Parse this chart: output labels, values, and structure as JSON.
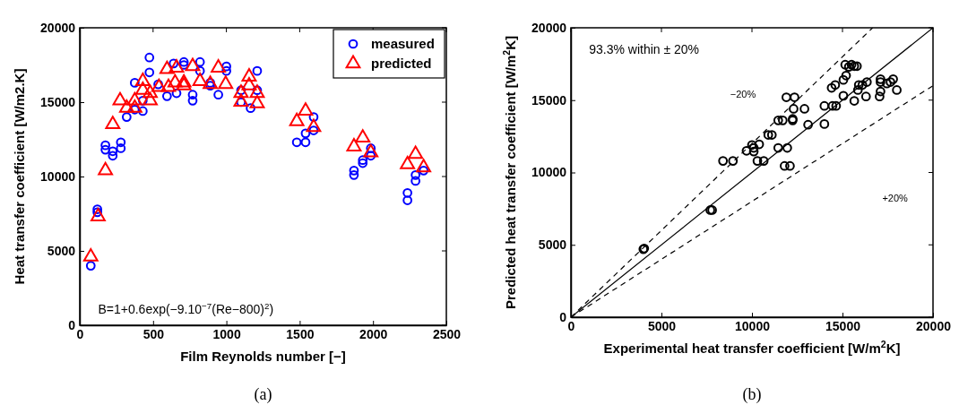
{
  "chart_data": [
    {
      "type": "scatter",
      "xlabel": "Film Reynolds number [−]",
      "ylabel": "Heat transfer coefficient [W/m2.K]",
      "xlim": [
        0,
        2500
      ],
      "ylim": [
        0,
        20000
      ],
      "xticks": [
        0,
        500,
        1000,
        1500,
        2000,
        2500
      ],
      "yticks": [
        0,
        5000,
        10000,
        15000,
        20000
      ],
      "legend": "top right",
      "grid": false,
      "annotations": [
        "B=1+0.6exp(−9.10$^{−7}$(Re−800)$^{2}$)",
        "(a)"
      ],
      "series": [
        {
          "name": "measured",
          "color": "#0000ff",
          "marker": "circle",
          "x": [
            75,
            120,
            120,
            175,
            175,
            225,
            225,
            280,
            280,
            320,
            375,
            375,
            430,
            430,
            475,
            475,
            535,
            595,
            640,
            660,
            710,
            710,
            770,
            770,
            820,
            820,
            890,
            890,
            945,
            1000,
            1000,
            1100,
            1100,
            1165,
            1210,
            1210,
            1480,
            1540,
            1540,
            1595,
            1595,
            1870,
            1870,
            1930,
            1930,
            1985,
            1985,
            2235,
            2235,
            2290,
            2290,
            2345
          ],
          "values": [
            4000,
            7800,
            7600,
            12100,
            11800,
            11700,
            11400,
            12300,
            11900,
            14000,
            14500,
            16300,
            14400,
            15100,
            18000,
            17000,
            16200,
            15400,
            17600,
            15600,
            17700,
            17500,
            15500,
            15100,
            17700,
            17100,
            16300,
            16100,
            15500,
            17400,
            17100,
            15800,
            15000,
            14600,
            17100,
            15800,
            12300,
            12300,
            12900,
            14000,
            13100,
            10400,
            10100,
            11100,
            10900,
            11900,
            11400,
            8900,
            8400,
            10100,
            9700,
            10400
          ]
        },
        {
          "name": "predicted",
          "color": "#ff0000",
          "marker": "triangle",
          "x": [
            75,
            125,
            175,
            225,
            275,
            320,
            375,
            375,
            430,
            430,
            480,
            480,
            540,
            595,
            605,
            650,
            660,
            710,
            710,
            770,
            820,
            890,
            945,
            995,
            1100,
            1100,
            1155,
            1155,
            1210,
            1210,
            1480,
            1540,
            1595,
            1870,
            1930,
            1985,
            2235,
            2290,
            2345
          ],
          "values": [
            4700,
            7400,
            10500,
            13600,
            15200,
            14700,
            14700,
            15200,
            16500,
            15900,
            15700,
            15200,
            16100,
            17300,
            16100,
            16400,
            17400,
            16400,
            16200,
            17500,
            16500,
            16300,
            17400,
            16300,
            15700,
            15100,
            16800,
            16200,
            15700,
            15000,
            13800,
            14500,
            13400,
            12100,
            12700,
            11700,
            10900,
            11600,
            10700
          ]
        }
      ]
    },
    {
      "type": "scatter",
      "xlabel": "Experimental heat transfer coefficient [W/m$^{2}$K]",
      "ylabel": "Predicted heat transfer coefficient [W/m$^{2}$K]",
      "xlim": [
        0,
        20000
      ],
      "ylim": [
        0,
        20000
      ],
      "xticks": [
        0,
        5000,
        10000,
        15000,
        20000
      ],
      "yticks": [
        0,
        5000,
        10000,
        15000,
        20000
      ],
      "grid": false,
      "legend": false,
      "annotations": [
        "93.3% within ± 20%",
        "−20%",
        "+20%",
        "(b)"
      ],
      "series": [
        {
          "color": "#000000",
          "marker": "circle",
          "x": [
            4000,
            4050,
            7700,
            7800,
            8400,
            8950,
            9700,
            10000,
            10100,
            10100,
            10400,
            10300,
            10650,
            10900,
            11100,
            11450,
            11950,
            11800,
            12100,
            11450,
            11700,
            12250,
            12250,
            11900,
            12350,
            12300,
            12900,
            13100,
            14000,
            14000,
            14450,
            14650,
            14400,
            14600,
            15050,
            15050,
            15200,
            15150,
            15350,
            15500,
            15650,
            15800,
            15650,
            15850,
            15900,
            16100,
            16350,
            16300,
            17100,
            17100,
            17100,
            17050,
            17450,
            17650,
            17800,
            18000
          ],
          "values": [
            4700,
            4750,
            7400,
            7400,
            10800,
            10800,
            11500,
            11900,
            11700,
            11450,
            11950,
            10800,
            10800,
            12600,
            12600,
            11700,
            11700,
            10450,
            10450,
            13600,
            13600,
            13700,
            13600,
            15200,
            15200,
            14400,
            14400,
            13300,
            14600,
            13350,
            14600,
            14600,
            15850,
            16050,
            15300,
            16400,
            16700,
            17450,
            17300,
            17450,
            17350,
            17350,
            14950,
            15700,
            16050,
            16050,
            16250,
            15250,
            16450,
            16250,
            15600,
            15250,
            16150,
            16250,
            16450,
            15700
          ]
        },
        {
          "type": "line",
          "color": "#000000",
          "line_style": "solid",
          "marker": "none",
          "x": [
            0,
            20000
          ],
          "values": [
            0,
            20000
          ]
        },
        {
          "type": "line",
          "color": "#000000",
          "line_style": "dashed",
          "marker": "none",
          "x": [
            0,
            16667
          ],
          "values": [
            0,
            20000
          ]
        },
        {
          "type": "line",
          "color": "#000000",
          "line_style": "dashed",
          "marker": "none",
          "x": [
            0,
            20000
          ],
          "values": [
            0,
            16000
          ]
        }
      ]
    }
  ]
}
